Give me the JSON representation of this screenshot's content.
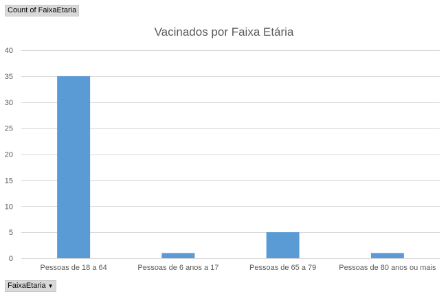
{
  "pivot": {
    "value_field_label": "Count of FaixaEtaria",
    "axis_field_label": "FaixaEtaria"
  },
  "colors": {
    "bar": "#5b9bd5",
    "grid": "#d9d9d9",
    "text": "#595959",
    "field_button": "#d9d9d9"
  },
  "chart_data": {
    "type": "bar",
    "title": "Vacinados por Faixa Etária",
    "xlabel": "",
    "ylabel": "",
    "categories": [
      "Pessoas de 18 a 64",
      "Pessoas de 6 anos a 17",
      "Pessoas de 65 a 79",
      "Pessoas de 80 anos ou mais"
    ],
    "values": [
      35,
      1,
      5,
      1
    ],
    "ylim": [
      0,
      40
    ],
    "yticks": [
      0,
      5,
      10,
      15,
      20,
      25,
      30,
      35,
      40
    ],
    "grid": true,
    "legend": "none"
  }
}
